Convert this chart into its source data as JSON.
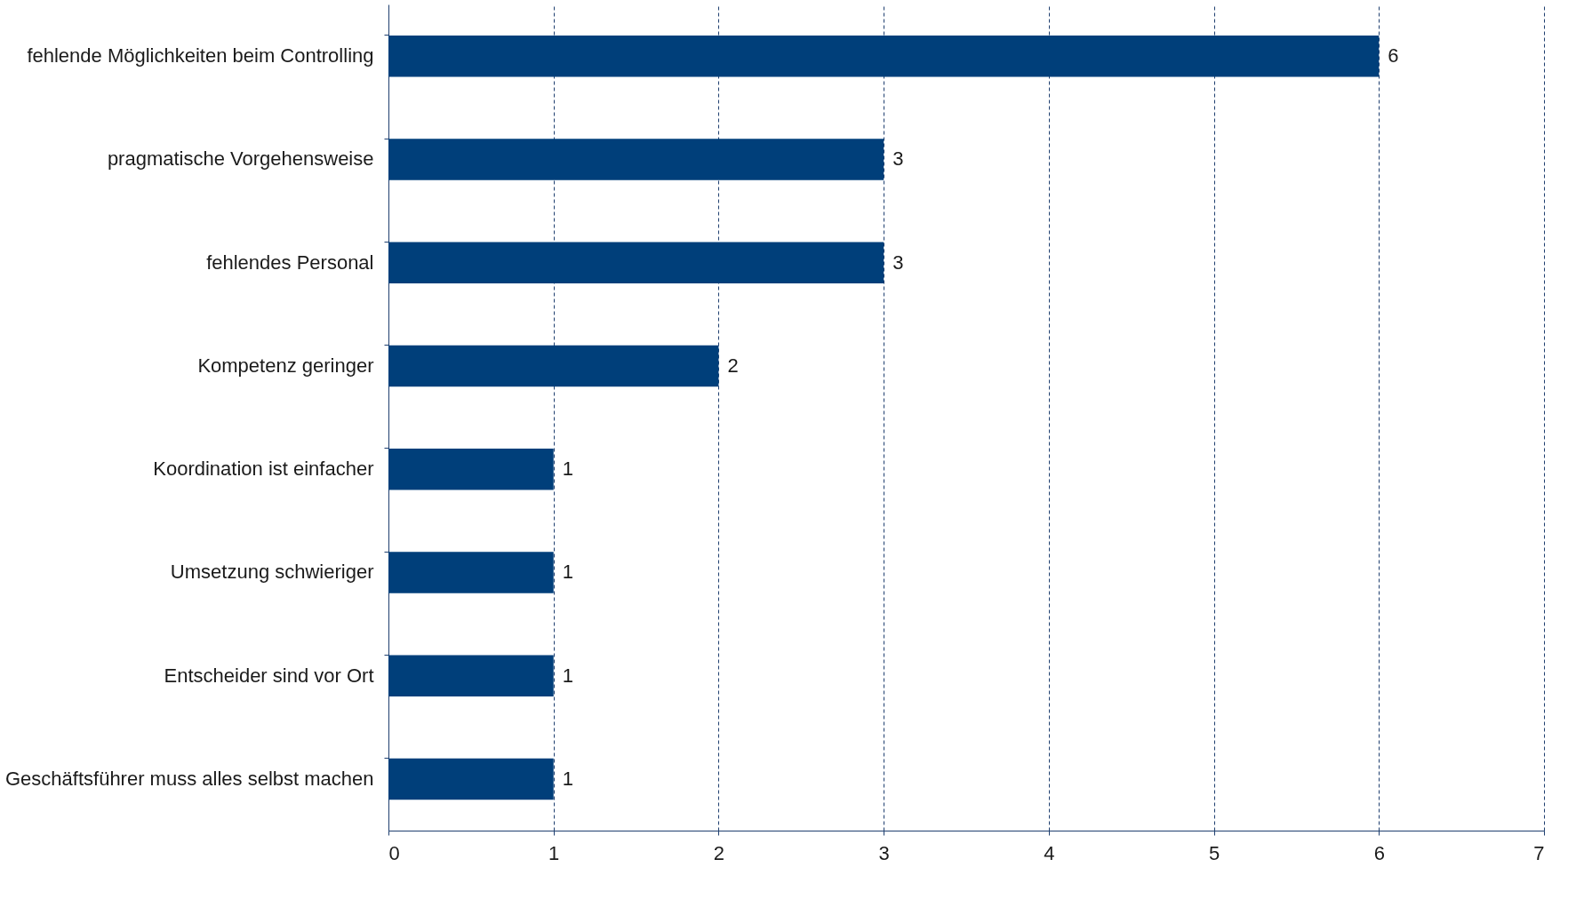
{
  "chart_data": {
    "type": "bar",
    "orientation": "horizontal",
    "categories": [
      "fehlende Möglichkeiten beim Controlling",
      "pragmatische Vorgehensweise",
      "fehlendes Personal",
      "Kompetenz geringer",
      "Koordination ist einfacher",
      "Umsetzung schwieriger",
      "Entscheider sind vor Ort",
      "Geschäftsführer muss alles selbst machen"
    ],
    "values": [
      6,
      3,
      3,
      2,
      1,
      1,
      1,
      1
    ],
    "color": "#003f7a",
    "xlim": [
      0,
      7
    ],
    "xticks": [
      0,
      1,
      2,
      3,
      4,
      5,
      6,
      7
    ],
    "grid": "x",
    "data_labels": true
  }
}
